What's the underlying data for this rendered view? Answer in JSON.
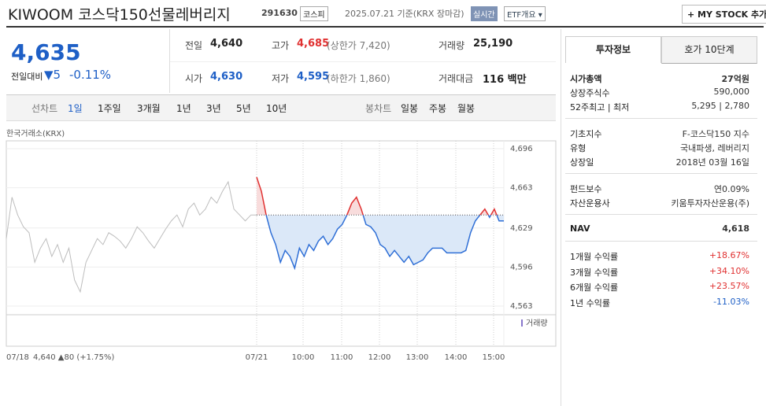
{
  "header": {
    "title": "KIWOOM 코스닥150선물레버리지",
    "code": "291630",
    "market": "코스피",
    "date": "2025.07.21 기준(KRX 장마감)",
    "realtime": "실시간",
    "etf": "ETF개요 ▾",
    "mystock": "+ MY STOCK 추가"
  },
  "price": {
    "current": "4,635",
    "change_label": "전일대비",
    "change": "▼5",
    "change_rate": "-0.11%"
  },
  "quote": [
    {
      "label": "전일",
      "value": "4,640"
    },
    {
      "label": "고가",
      "value": "4,685",
      "note": "(상한가 7,420)"
    },
    {
      "label": "거래량",
      "value": "25,190"
    },
    {
      "label": "시가",
      "value": "4,630"
    },
    {
      "label": "저가",
      "value": "4,595",
      "note": "(하한가 1,860)"
    },
    {
      "label": "거래대금",
      "value": "116 백만"
    }
  ],
  "tabs": {
    "line": "선차트",
    "periods": [
      "1일",
      "1주일",
      "3개월",
      "1년",
      "3년",
      "5년",
      "10년"
    ],
    "candle": "봉차트",
    "candle_periods": [
      "일봉",
      "주봉",
      "월봉"
    ]
  },
  "chart_data": {
    "type": "line",
    "source": "한국거래소(KRX)",
    "volume_label": "거래량",
    "ylim": [
      4563,
      4696
    ],
    "yticks": [
      {
        "value": 4696,
        "label": "4,696"
      },
      {
        "value": 4663,
        "label": "4,663"
      },
      {
        "value": 4629,
        "label": "4,629"
      },
      {
        "value": 4596,
        "label": "4,596"
      },
      {
        "value": 4563,
        "label": "4,563"
      }
    ],
    "baseline": 4640,
    "color": "#2f6fd6",
    "up_color": "#e03030",
    "fill": "#dbe8f8",
    "up_fill": "#f8dcdc",
    "prev_color": "#bdbdbd",
    "prev_label": "07/18",
    "prev_summary": "4,640 ▲80 (+1.75%)",
    "prev_values": [
      4620,
      4655,
      4640,
      4630,
      4625,
      4600,
      4612,
      4620,
      4605,
      4615,
      4600,
      4612,
      4585,
      4575,
      4600,
      4610,
      4620,
      4615,
      4625,
      4622,
      4618,
      4612,
      4620,
      4630,
      4625,
      4618,
      4612,
      4620,
      4628,
      4635,
      4640,
      4630,
      4645,
      4650,
      4640,
      4645,
      4655,
      4650,
      4660,
      4668,
      4645,
      4640,
      4635,
      4640,
      4640
    ],
    "x_labels": [
      "07/21",
      "10:00",
      "11:00",
      "12:00",
      "13:00",
      "14:00",
      "15:00"
    ],
    "values": [
      4672,
      4660,
      4640,
      4625,
      4615,
      4600,
      4610,
      4605,
      4595,
      4612,
      4605,
      4615,
      4610,
      4618,
      4622,
      4615,
      4620,
      4628,
      4632,
      4640,
      4650,
      4655,
      4645,
      4632,
      4630,
      4625,
      4615,
      4612,
      4605,
      4610,
      4605,
      4600,
      4605,
      4598,
      4600,
      4602,
      4608,
      4612,
      4612,
      4612,
      4608,
      4608,
      4608,
      4608,
      4610,
      4625,
      4635,
      4640,
      4645,
      4638,
      4645,
      4635,
      4635
    ]
  },
  "side": {
    "tabs": [
      "투자정보",
      "호가 10단계"
    ],
    "sections": [
      [
        {
          "label": "시가총액",
          "value": "27억원"
        },
        {
          "label": "상장주식수",
          "value": "590,000"
        },
        {
          "label": "52주최고 | 최저",
          "value": "5,295 | 2,780"
        }
      ],
      [
        {
          "label": "기초지수",
          "value": "F-코스닥150 지수"
        },
        {
          "label": "유형",
          "value": "국내파생, 레버리지"
        },
        {
          "label": "상장일",
          "value": "2018년 03월 16일"
        }
      ],
      [
        {
          "label": "펀드보수",
          "value": "연0.09%"
        },
        {
          "label": "자산운용사",
          "value": "키움투자자산운용(주)"
        }
      ],
      [
        {
          "label": "NAV",
          "value": "4,618"
        }
      ],
      [
        {
          "label": "1개월 수익률",
          "value": "+18.67%"
        },
        {
          "label": "3개월 수익률",
          "value": "+34.10%"
        },
        {
          "label": "6개월 수익률",
          "value": "+23.57%"
        },
        {
          "label": "1년 수익률",
          "value": "-11.03%"
        }
      ]
    ]
  }
}
